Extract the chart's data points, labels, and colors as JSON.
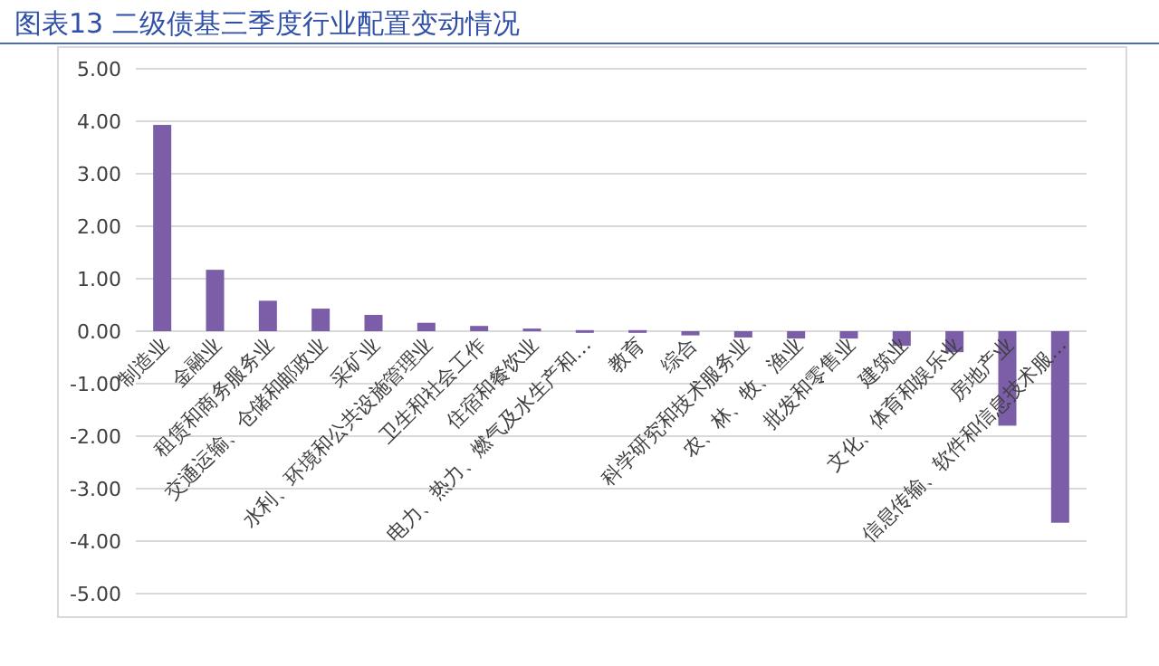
{
  "chart_data": {
    "type": "bar",
    "title": "图表13  二级债基三季度行业配置变动情况",
    "categories": [
      "制造业",
      "金融业",
      "租赁和商务服务业",
      "交通运输、仓储和邮政业",
      "采矿业",
      "水利、环境和公共设施管理业",
      "卫生和社会工作",
      "住宿和餐饮业",
      "电力、热力、燃气及水生产和…",
      "教育",
      "综合",
      "科学研究和技术服务业",
      "农、林、牧、渔业",
      "批发和零售业",
      "建筑业",
      "文化、体育和娱乐业",
      "房地产业",
      "信息传输、软件和信息技术服…"
    ],
    "values": [
      3.93,
      1.17,
      0.58,
      0.43,
      0.31,
      0.16,
      0.1,
      0.05,
      0.02,
      0.02,
      -0.08,
      -0.12,
      -0.14,
      -0.14,
      -0.28,
      -0.4,
      -1.8,
      -3.65
    ],
    "color": "#7b5ea7",
    "ylim": [
      -5,
      5
    ],
    "yticks": [
      {
        "value": 5,
        "label": "5.00"
      },
      {
        "value": 4,
        "label": "4.00"
      },
      {
        "value": 3,
        "label": "3.00"
      },
      {
        "value": 2,
        "label": "2.00"
      },
      {
        "value": 1,
        "label": "1.00"
      },
      {
        "value": 0,
        "label": "0.00"
      },
      {
        "value": -1,
        "label": "-1.00"
      },
      {
        "value": -2,
        "label": "-2.00"
      },
      {
        "value": -3,
        "label": "-3.00"
      },
      {
        "value": -4,
        "label": "-4.00"
      },
      {
        "value": -5,
        "label": "-5.00"
      }
    ],
    "grid": "y"
  }
}
